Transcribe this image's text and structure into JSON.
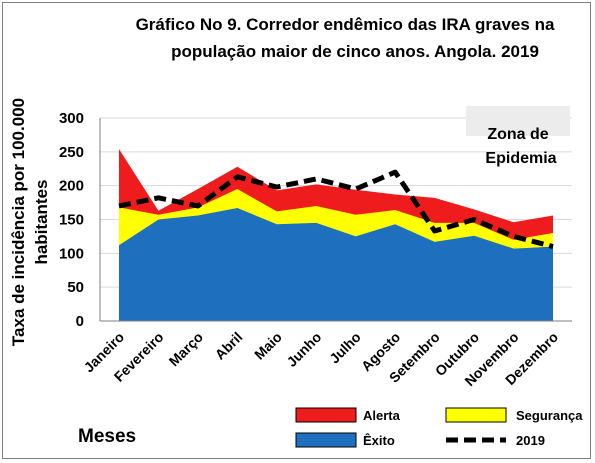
{
  "chart_data": {
    "type": "area",
    "title": "Gráfico No 9. Corredor endêmico das IRA graves na",
    "subtitle": "população maior de cinco anos. Angola. 2019",
    "ylabel_line1": "Taxa de incidência por 100.000",
    "ylabel_line2": "habitantes",
    "xlabel": "Meses",
    "annotation_line1": "Zona de",
    "annotation_line2": "Epidemia",
    "ylim": [
      0,
      300
    ],
    "yticks": [
      "0",
      "50",
      "100",
      "150",
      "200",
      "250",
      "300"
    ],
    "categories": [
      "Janeiro",
      "Fevereiro",
      "Março",
      "Abril",
      "Maio",
      "Junho",
      "Julho",
      "Agosto",
      "Setembro",
      "Outubro",
      "Novembro",
      "Dezembro"
    ],
    "series": [
      {
        "name": "Êxito",
        "kind": "area",
        "color": "#1f6fbf",
        "values": [
          112,
          150,
          156,
          167,
          143,
          145,
          125,
          143,
          117,
          126,
          107,
          110
        ]
      },
      {
        "name": "Segurança",
        "kind": "area",
        "color": "#ffff00",
        "values": [
          168,
          157,
          168,
          195,
          162,
          170,
          157,
          164,
          145,
          145,
          120,
          130
        ]
      },
      {
        "name": "Alerta",
        "kind": "area",
        "color": "#ee1c1c",
        "values": [
          254,
          163,
          195,
          228,
          193,
          202,
          194,
          187,
          182,
          165,
          146,
          156
        ]
      },
      {
        "name": "2019",
        "kind": "line",
        "color": "#000000",
        "values": [
          170,
          182,
          170,
          213,
          198,
          210,
          195,
          220,
          133,
          150,
          125,
          110
        ]
      }
    ],
    "legend": {
      "placement": "bottom-right"
    }
  }
}
